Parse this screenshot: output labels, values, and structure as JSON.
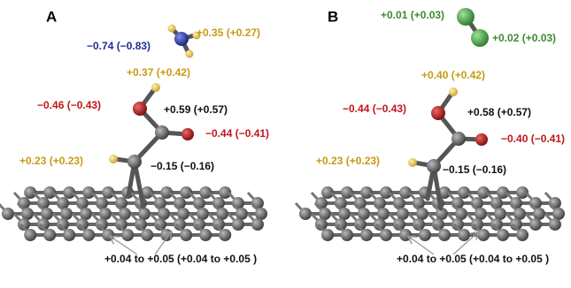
{
  "panels": [
    {
      "label": "A",
      "annotations": [
        "−0.74 (−0.83)",
        "+0.35 (+0.27)",
        "+0.37 (+0.42)",
        "−0.46 (−0.43)",
        "+0.59 (+0.57)",
        "−0.44 (−0.41)",
        "+0.23 (+0.23)",
        "−0.15 (−0.16)",
        "+0.04 to +0.05 (+0.04 to +0.05 )"
      ]
    },
    {
      "label": "B",
      "annotations": [
        "+0.01 (+0.03)",
        "+0.02 (+0.03)",
        "+0.40 (+0.42)",
        "−0.44 (−0.43)",
        "+0.58 (+0.57)",
        "−0.40 (−0.41)",
        "+0.23 (+0.23)",
        "−0.15 (−0.16)",
        "+0.04 to +0.05 (+0.04 to +0.05 )"
      ]
    }
  ]
}
